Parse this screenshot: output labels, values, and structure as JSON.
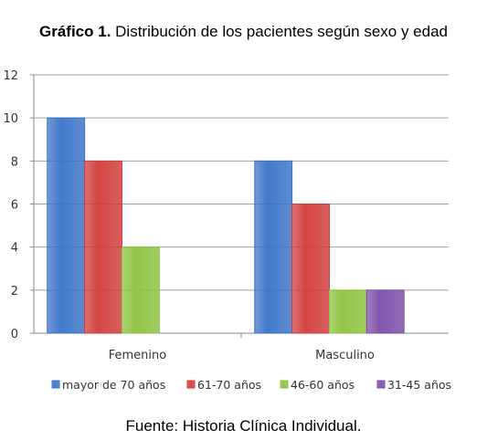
{
  "title_bold": "Gráfico 1.",
  "title_rest": "Distribución de los pacientes según sexo y edad",
  "source": "Fuente: Historia Clínica Individual.",
  "colors": {
    "grid": "#a0a0a0",
    "axis": "#8a8a8a",
    "tick_text": "#333333",
    "series": [
      "#3a72c8",
      "#d23b3b",
      "#8cc23e",
      "#7c4ca8"
    ]
  },
  "chart_data": {
    "type": "bar",
    "categories": [
      "Femenino",
      "Masculino"
    ],
    "series": [
      {
        "name": "mayor de 70 años",
        "values": [
          10,
          8
        ]
      },
      {
        "name": "61-70 años",
        "values": [
          8,
          6
        ]
      },
      {
        "name": "46-60 años",
        "values": [
          4,
          2
        ]
      },
      {
        "name": "31-45 años",
        "values": [
          0,
          2
        ]
      }
    ],
    "ylim": [
      0,
      12
    ],
    "yticks": [
      0,
      2,
      4,
      6,
      8,
      10,
      12
    ],
    "grid": true,
    "legend": "bottom"
  }
}
